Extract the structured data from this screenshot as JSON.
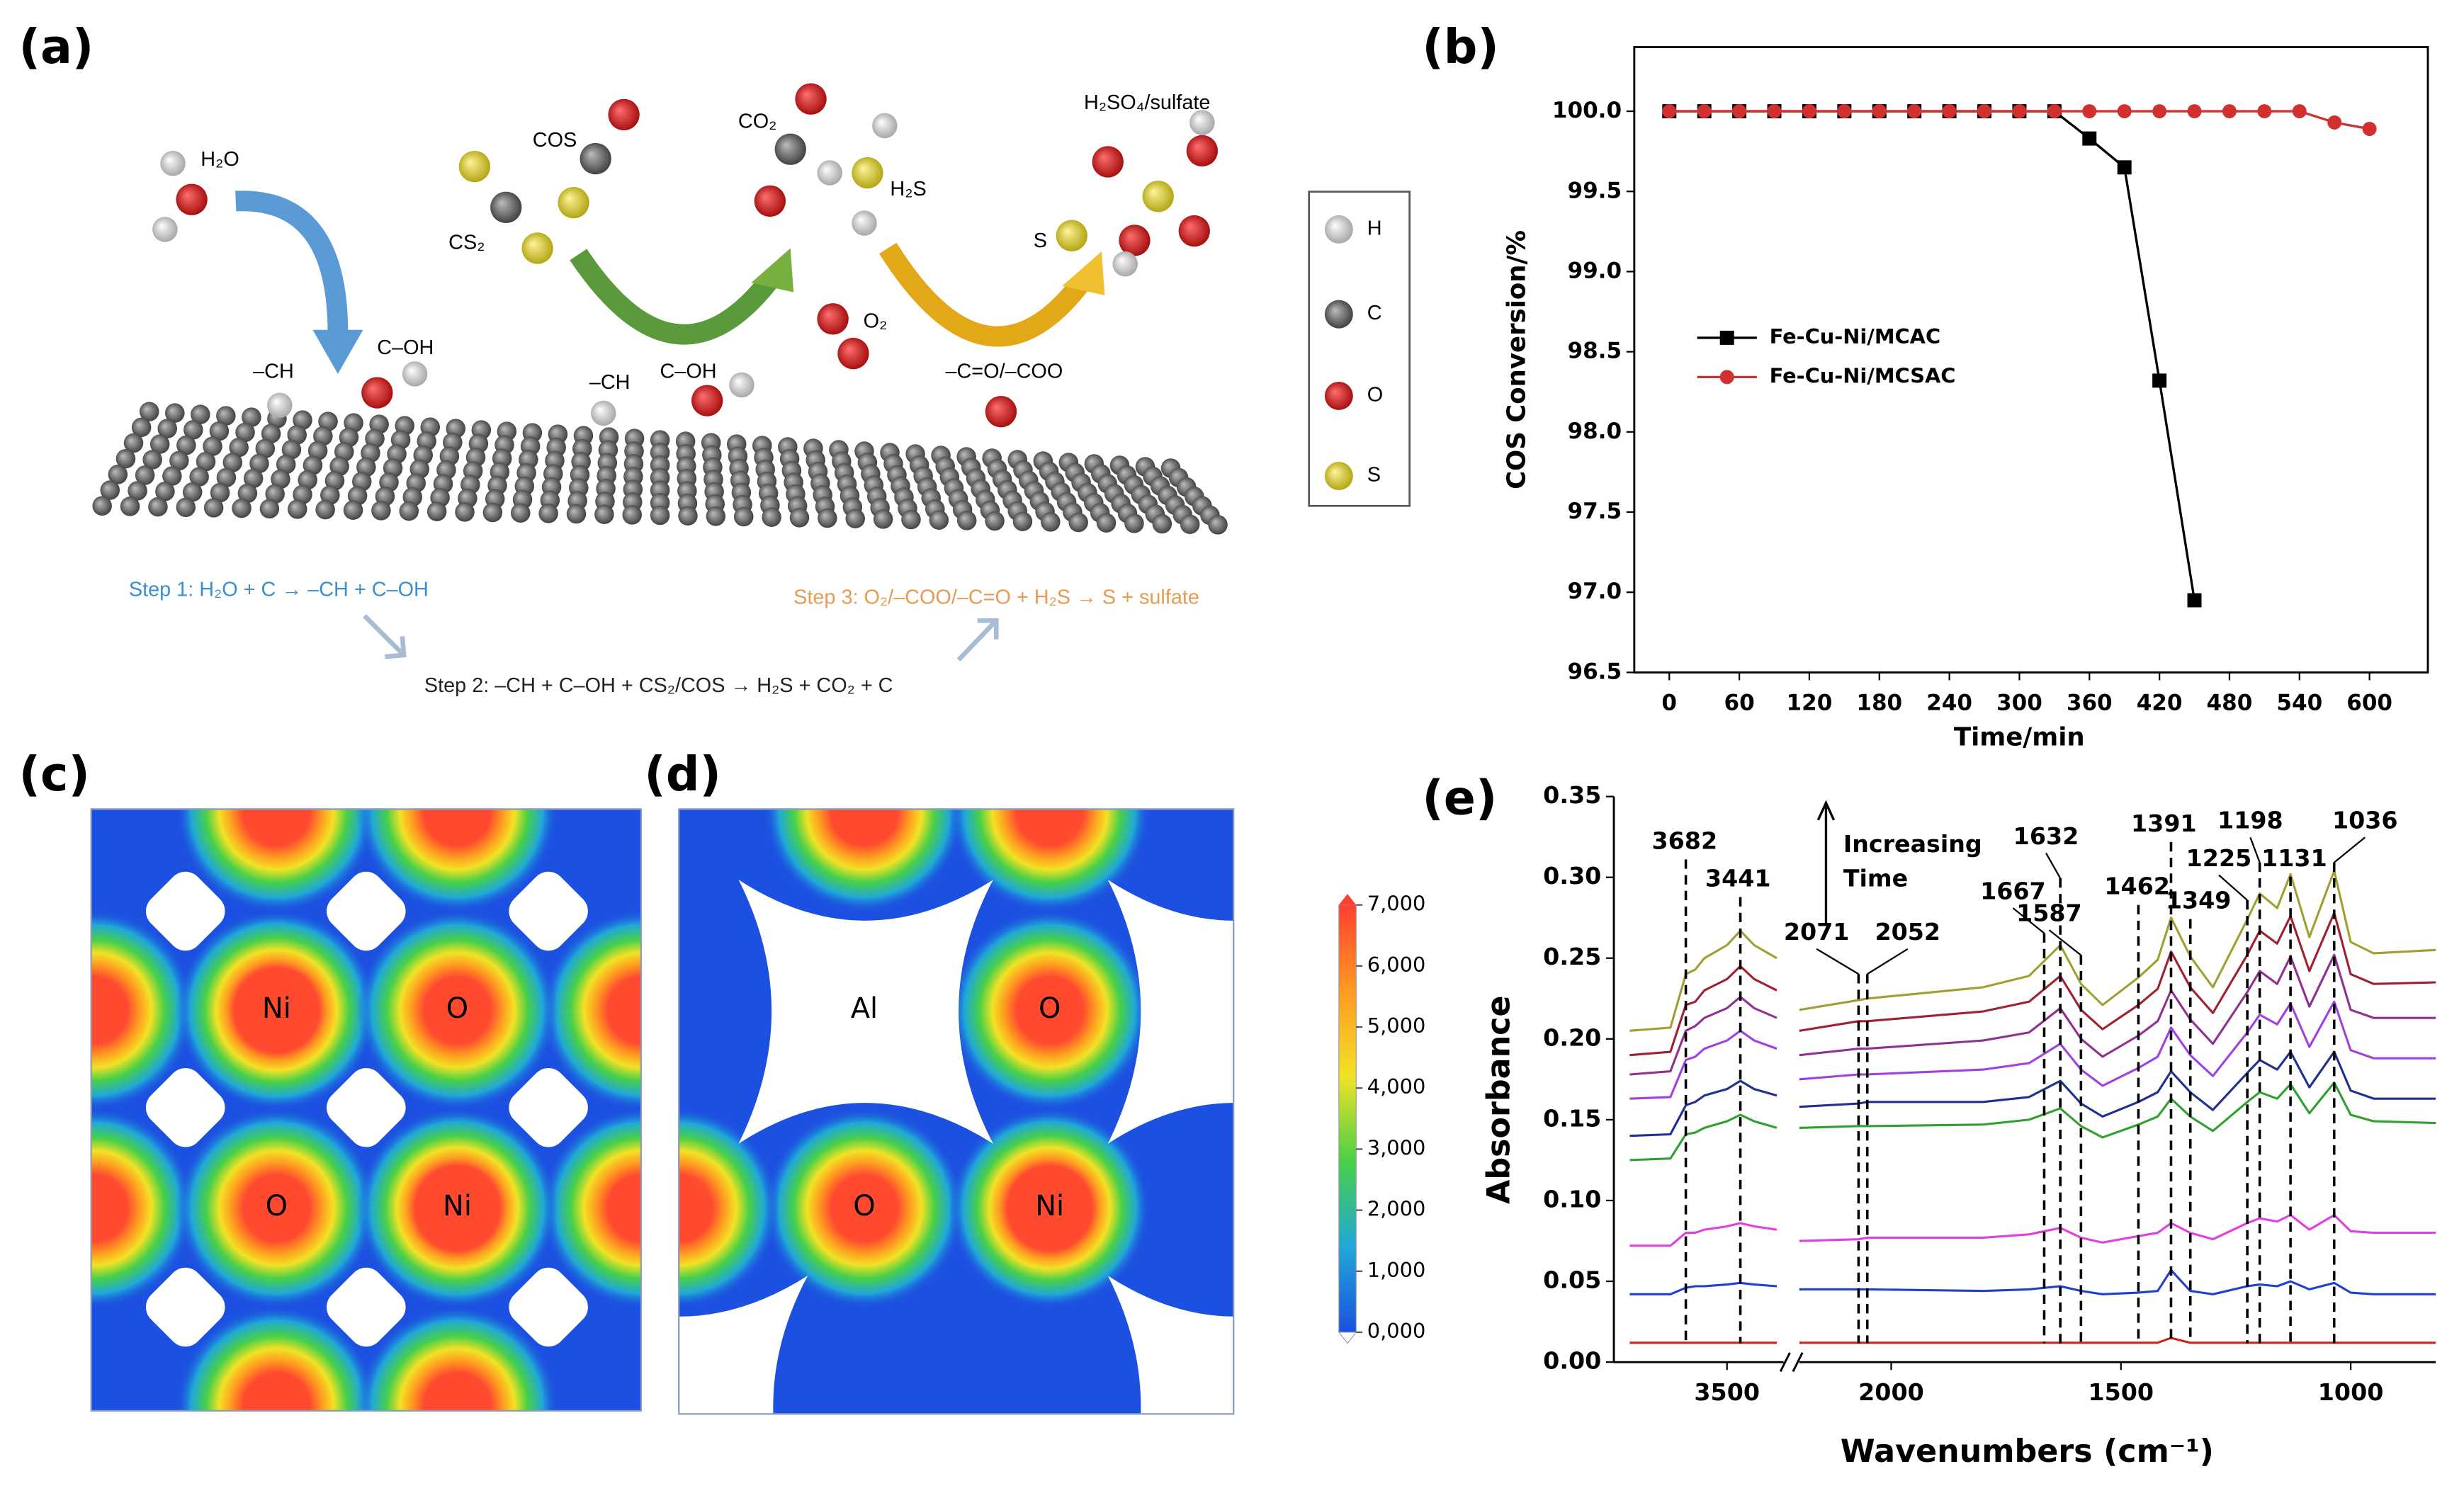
{
  "panel_labels": [
    "(a)",
    "(b)",
    "(c)",
    "(d)",
    "(e)"
  ],
  "scheme": {
    "molecules": [
      "H₂O",
      "COS",
      "CS₂",
      "CO₂",
      "H₂S",
      "H₂SO₄/sulfate",
      "O₂",
      "S"
    ],
    "sites": [
      "–CH",
      "C–OH",
      "–CH",
      "C–OH",
      "–C=O/–COO"
    ],
    "steps": [
      "Step 1: H₂O + C → –CH + C–OH",
      "Step 2: –CH + C–OH + CS₂/COS → H₂S + CO₂ + C",
      "Step 3: O₂/–COO/–C=O + H₂S → S + sulfate"
    ],
    "atoms": [
      "H",
      "C",
      "O",
      "S"
    ]
  },
  "maps": {
    "c_labels": [
      "Ni",
      "O",
      "O",
      "Ni"
    ],
    "d_labels": [
      "Al",
      "O",
      "O",
      "Ni"
    ],
    "colorbar": {
      "lim": [
        0,
        7000
      ],
      "ticks": [
        {
          "value": 7000,
          "label": "7,000"
        },
        {
          "value": 6000,
          "label": "6,000"
        },
        {
          "value": 5000,
          "label": "5,000"
        },
        {
          "value": 4000,
          "label": "4,000"
        },
        {
          "value": 3000,
          "label": "3,000"
        },
        {
          "value": 2000,
          "label": "2,000"
        },
        {
          "value": 1000,
          "label": "1,000"
        },
        {
          "value": 0,
          "label": "0,000"
        }
      ]
    }
  },
  "chart_data": [
    {
      "type": "line",
      "xlabel": "Time/min",
      "ylabel": "COS Conversion/%",
      "x": [
        0,
        30,
        60,
        90,
        120,
        150,
        180,
        210,
        240,
        270,
        300,
        330,
        360,
        390,
        420,
        450,
        480,
        510,
        540,
        570,
        600
      ],
      "xlim": [
        -30,
        650
      ],
      "xticks": [
        0,
        60,
        120,
        180,
        240,
        300,
        360,
        420,
        480,
        540,
        600
      ],
      "ylim": [
        96.5,
        100.4
      ],
      "yticks": [
        96.5,
        {
          "value": 97,
          "label": "97.0"
        },
        97.5,
        {
          "value": 98,
          "label": "98.0"
        },
        98.5,
        {
          "value": 99,
          "label": "99.0"
        },
        99.5,
        {
          "value": 100,
          "label": "100.0"
        }
      ],
      "series": [
        {
          "name": "Fe-Cu-Ni/MCAC",
          "color": "#000000",
          "marker": "square",
          "values": [
            100,
            100,
            100,
            100,
            100,
            100,
            100,
            100,
            100,
            100,
            100,
            100,
            99.83,
            99.65,
            98.32,
            96.95,
            null,
            null,
            null,
            null,
            null
          ]
        },
        {
          "name": "Fe-Cu-Ni/MCSAC",
          "color": "#d03030",
          "marker": "circle",
          "values": [
            100,
            100,
            100,
            100,
            100,
            100,
            100,
            100,
            100,
            100,
            100,
            100,
            100,
            100,
            100,
            100,
            100,
            100,
            100,
            99.93,
            99.89
          ]
        }
      ]
    },
    {
      "type": "line",
      "xlabel": "Wavenumbers (cm⁻¹)",
      "ylabel": "Absorbance",
      "x": [
        3930,
        3750,
        3682,
        3640,
        3600,
        3500,
        3441,
        3380,
        3280,
        2200,
        2071,
        2052,
        1800,
        1700,
        1632,
        1587,
        1540,
        1462,
        1420,
        1391,
        1349,
        1300,
        1225,
        1198,
        1160,
        1131,
        1090,
        1036,
        1000,
        950,
        815
      ],
      "xlim": [
        [
          4000,
          3250
        ],
        [
          2200,
          815
        ]
      ],
      "xticks": [
        3500,
        2000,
        1500,
        1000
      ],
      "ylim": [
        0,
        0.35
      ],
      "yticks": [
        {
          "value": 0,
          "label": "0.00"
        },
        0.05,
        {
          "value": 0.1,
          "label": "0.10"
        },
        0.15,
        {
          "value": 0.2,
          "label": "0.20"
        },
        0.25,
        {
          "value": 0.3,
          "label": "0.30"
        },
        0.35
      ],
      "peaks": [
        3682,
        3441,
        2071,
        2052,
        1667,
        1632,
        1587,
        1462,
        1391,
        1349,
        1225,
        1198,
        1131,
        1036
      ],
      "annotation": [
        "Increasing",
        "Time"
      ],
      "series": [
        {
          "color": "#a0a030",
          "values": [
            0.205,
            0.207,
            0.24,
            0.243,
            0.25,
            0.258,
            0.267,
            0.258,
            0.25,
            0.218,
            0.224,
            0.225,
            0.232,
            0.239,
            0.258,
            0.234,
            0.221,
            0.238,
            0.249,
            0.275,
            0.251,
            0.232,
            0.274,
            0.29,
            0.281,
            0.302,
            0.263,
            0.304,
            0.26,
            0.253,
            0.255
          ]
        },
        {
          "color": "#a02030",
          "values": [
            0.19,
            0.192,
            0.221,
            0.223,
            0.23,
            0.237,
            0.245,
            0.237,
            0.23,
            0.205,
            0.211,
            0.211,
            0.217,
            0.223,
            0.239,
            0.218,
            0.206,
            0.221,
            0.231,
            0.254,
            0.232,
            0.216,
            0.252,
            0.267,
            0.259,
            0.276,
            0.242,
            0.278,
            0.24,
            0.234,
            0.235
          ]
        },
        {
          "color": "#903090",
          "values": [
            0.178,
            0.18,
            0.205,
            0.208,
            0.213,
            0.219,
            0.226,
            0.219,
            0.213,
            0.19,
            0.194,
            0.194,
            0.199,
            0.204,
            0.219,
            0.2,
            0.189,
            0.202,
            0.211,
            0.23,
            0.212,
            0.197,
            0.229,
            0.242,
            0.234,
            0.251,
            0.22,
            0.252,
            0.218,
            0.213,
            0.213
          ]
        },
        {
          "color": "#a040e0",
          "values": [
            0.163,
            0.164,
            0.187,
            0.189,
            0.194,
            0.199,
            0.205,
            0.199,
            0.194,
            0.175,
            0.178,
            0.178,
            0.181,
            0.185,
            0.197,
            0.181,
            0.171,
            0.182,
            0.189,
            0.207,
            0.19,
            0.177,
            0.204,
            0.215,
            0.209,
            0.222,
            0.195,
            0.223,
            0.193,
            0.188,
            0.188
          ]
        },
        {
          "color": "#203090",
          "values": [
            0.14,
            0.141,
            0.159,
            0.161,
            0.165,
            0.169,
            0.174,
            0.169,
            0.165,
            0.158,
            0.16,
            0.161,
            0.161,
            0.164,
            0.174,
            0.16,
            0.152,
            0.161,
            0.167,
            0.18,
            0.167,
            0.156,
            0.179,
            0.187,
            0.181,
            0.192,
            0.17,
            0.192,
            0.168,
            0.163,
            0.163
          ]
        },
        {
          "color": "#30a030",
          "values": [
            0.125,
            0.126,
            0.141,
            0.142,
            0.145,
            0.149,
            0.153,
            0.149,
            0.145,
            0.145,
            0.146,
            0.146,
            0.147,
            0.15,
            0.157,
            0.146,
            0.139,
            0.147,
            0.152,
            0.163,
            0.152,
            0.143,
            0.161,
            0.167,
            0.163,
            0.172,
            0.154,
            0.173,
            0.153,
            0.149,
            0.148
          ]
        },
        {
          "color": "#e040e0",
          "values": [
            0.072,
            0.072,
            0.08,
            0.08,
            0.082,
            0.084,
            0.086,
            0.084,
            0.082,
            0.075,
            0.076,
            0.077,
            0.077,
            0.079,
            0.083,
            0.077,
            0.074,
            0.078,
            0.08,
            0.086,
            0.08,
            0.076,
            0.086,
            0.089,
            0.087,
            0.091,
            0.082,
            0.091,
            0.081,
            0.08,
            0.08
          ]
        },
        {
          "color": "#2040d0",
          "values": [
            0.042,
            0.042,
            0.046,
            0.047,
            0.047,
            0.048,
            0.049,
            0.048,
            0.047,
            0.045,
            0.045,
            0.045,
            0.044,
            0.045,
            0.047,
            0.044,
            0.042,
            0.043,
            0.044,
            0.057,
            0.044,
            0.042,
            0.047,
            0.048,
            0.047,
            0.05,
            0.045,
            0.049,
            0.043,
            0.042,
            0.042
          ]
        },
        {
          "color": "#d02020",
          "values": [
            0.012,
            0.012,
            0.012,
            0.012,
            0.012,
            0.012,
            0.012,
            0.012,
            0.012,
            0.012,
            0.012,
            0.012,
            0.012,
            0.012,
            0.012,
            0.012,
            0.012,
            0.012,
            0.012,
            0.015,
            0.012,
            0.012,
            0.012,
            0.012,
            0.012,
            0.012,
            0.012,
            0.012,
            0.012,
            0.012,
            0.012
          ]
        }
      ]
    }
  ]
}
